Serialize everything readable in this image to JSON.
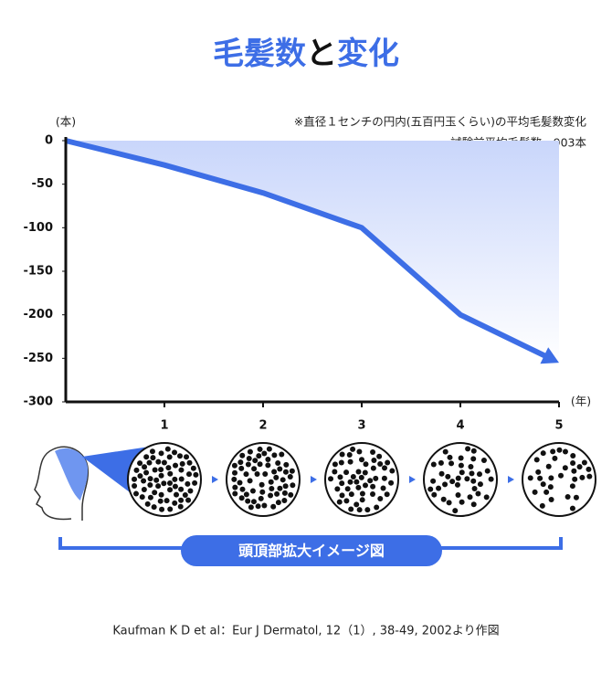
{
  "chart_data": {
    "type": "line",
    "title_parts": [
      "毛髪数",
      "と",
      "変化"
    ],
    "notes": [
      "※直径１センチの円内(五百円玉くらい)の平均毛髪数変化",
      "試験前平均毛髪数＝903本"
    ],
    "y_unit": "(本)",
    "x_unit": "(年)",
    "x": [
      0,
      1,
      2,
      3,
      4,
      5
    ],
    "xticks": [
      1,
      2,
      3,
      4,
      5
    ],
    "xlim": [
      0,
      5
    ],
    "series": [
      {
        "color": "#3d6ee6",
        "values": [
          0,
          -28,
          -60,
          -100,
          -200,
          -255
        ]
      }
    ],
    "ylim": [
      -300,
      0
    ],
    "yticks": [
      0,
      -50,
      -100,
      -150,
      -200,
      -250,
      -300
    ],
    "banner": "頭頂部拡大イメージ図",
    "source": "Kaufman K D et al：Eur J Dermatol, 12（1）, 38-49, 2002より作図"
  }
}
